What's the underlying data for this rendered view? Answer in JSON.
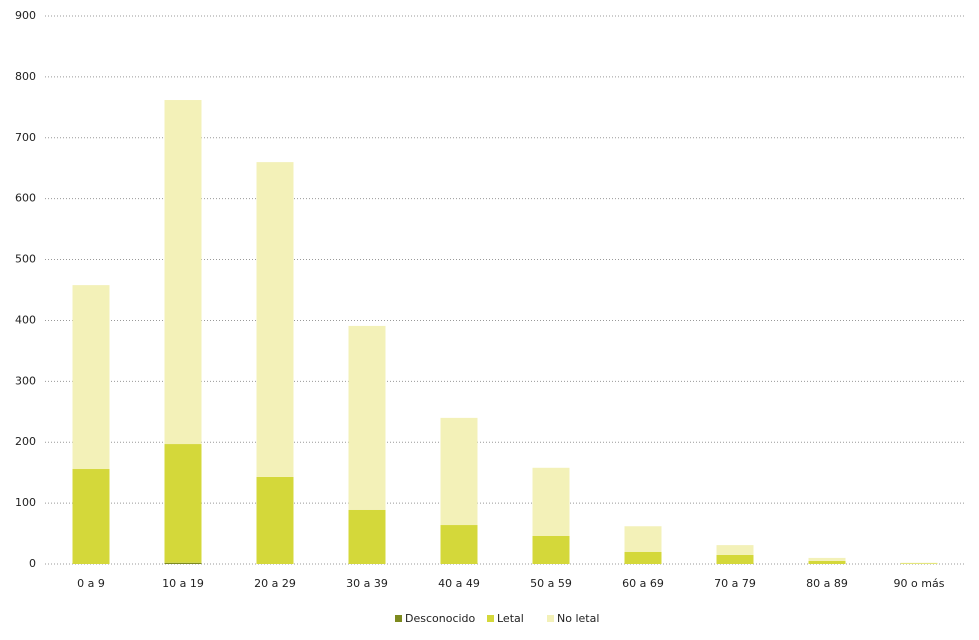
{
  "chart_data": {
    "type": "stacked_bar",
    "categories": [
      "0 a 9",
      "10 a 19",
      "20 a 29",
      "30 a 39",
      "40 a 49",
      "50 a 59",
      "60 a 69",
      "70 a 79",
      "80 a 89",
      "90 o más"
    ],
    "series": [
      {
        "name": "Desconocido",
        "color": "#7d8a1e",
        "values": [
          0,
          2,
          0,
          0,
          0,
          0,
          0,
          0,
          0,
          0
        ]
      },
      {
        "name": "Letal",
        "color": "#d4d83a",
        "values": [
          156,
          195,
          143,
          89,
          64,
          46,
          20,
          15,
          5,
          1
        ]
      },
      {
        "name": "No letal",
        "color": "#f3f1b8",
        "values": [
          302,
          565,
          517,
          302,
          176,
          112,
          42,
          16,
          5,
          1
        ]
      }
    ],
    "ylim": [
      0,
      900
    ],
    "yticks": [
      0,
      100,
      200,
      300,
      400,
      500,
      600,
      700,
      800,
      900
    ],
    "grid": true,
    "legend": "bottom"
  }
}
